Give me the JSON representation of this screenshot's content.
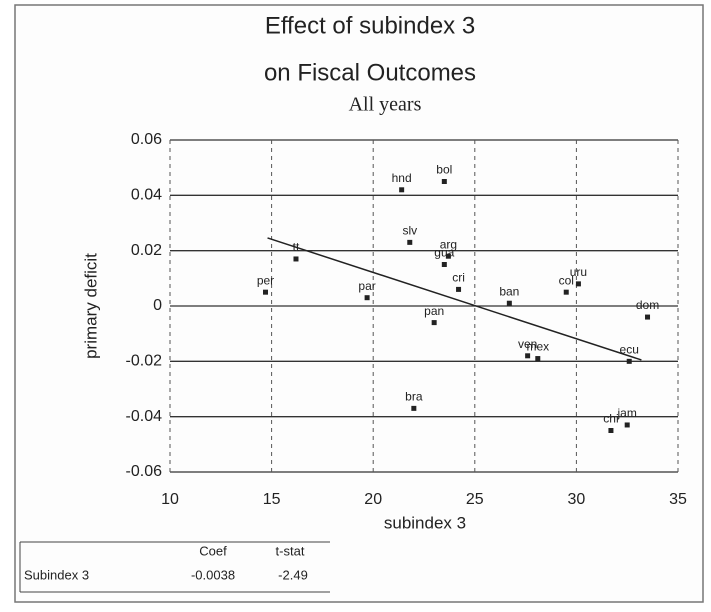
{
  "chart_data": {
    "type": "scatter",
    "title": "Effect of subindex 3",
    "subtitle_lines": [
      "on Fiscal Outcomes",
      "All years"
    ],
    "x_label": "subindex 3",
    "y_label": "primary deficit",
    "xlim": [
      10,
      35
    ],
    "xticks": [
      10,
      15,
      20,
      25,
      30,
      35
    ],
    "ylim": [
      -0.06,
      0.06
    ],
    "yticks": [
      0.06,
      0.04,
      0.02,
      0,
      -0.02,
      -0.04,
      -0.06
    ],
    "grid": true,
    "color": "#222222",
    "points": {
      "labels": [
        "hnd",
        "bol",
        "slv",
        "arg",
        "gua",
        "tt",
        "per",
        "par",
        "cri",
        "pan",
        "ban",
        "col",
        "uru",
        "dom",
        "ven",
        "mex",
        "ecu",
        "bra",
        "jam",
        "chi"
      ],
      "x": [
        21.4,
        23.5,
        21.8,
        23.7,
        23.5,
        16.2,
        14.7,
        19.7,
        24.2,
        23.0,
        26.7,
        29.5,
        30.1,
        33.5,
        27.6,
        28.1,
        32.6,
        22.0,
        32.5,
        31.7
      ],
      "y": [
        0.042,
        0.045,
        0.023,
        0.018,
        0.015,
        0.017,
        0.005,
        0.003,
        0.006,
        -0.006,
        0.001,
        0.005,
        0.008,
        -0.004,
        -0.018,
        -0.019,
        -0.02,
        -0.037,
        -0.043,
        -0.045
      ]
    },
    "trend_line": {
      "x": [
        14.8,
        33.2
      ],
      "y": [
        0.0246,
        -0.0195
      ]
    }
  },
  "table": {
    "header": [
      "Coef",
      "t-stat"
    ],
    "rows": [
      [
        "Subindex 3",
        "-0.0038",
        "-2.49"
      ]
    ]
  }
}
